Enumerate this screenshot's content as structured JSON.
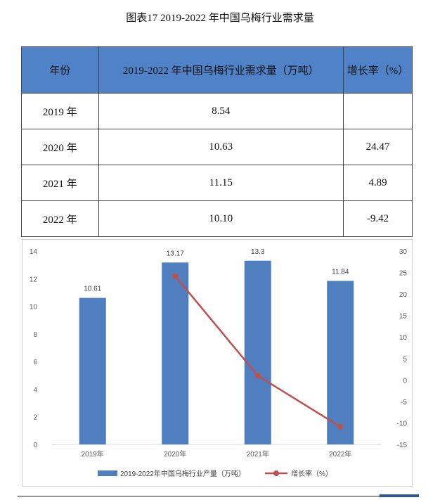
{
  "doc_title": "图表17  2019-2022 年中国乌梅行业需求量",
  "table": {
    "headers": [
      "年份",
      "2019-2022 年中国乌梅行业需求量（万吨）",
      "增长率（%）"
    ],
    "rows": [
      {
        "year": "2019 年",
        "demand": "8.54",
        "growth": ""
      },
      {
        "year": "2020 年",
        "demand": "10.63",
        "growth": "24.47"
      },
      {
        "year": "2021 年",
        "demand": "11.15",
        "growth": "4.89"
      },
      {
        "year": "2022 年",
        "demand": "10.10",
        "growth": "-9.42"
      }
    ]
  },
  "chart_data": {
    "type": "bar",
    "categories": [
      "2019年",
      "2020年",
      "2021年",
      "2022年"
    ],
    "series": [
      {
        "name": "2019-2022年中国乌梅行业产量（万吨）",
        "type": "bar",
        "axis": "left",
        "color": "#4f7fbf",
        "values": [
          10.61,
          13.17,
          13.3,
          11.84
        ],
        "labels": [
          "10.61",
          "13.17",
          "13.3",
          "11.84"
        ]
      },
      {
        "name": "增长率（%）",
        "type": "line",
        "axis": "right",
        "color": "#c0504d",
        "values": [
          null,
          24.2,
          1.0,
          -10.9
        ]
      }
    ],
    "y_left": {
      "min": 0,
      "max": 14,
      "ticks": [
        "0",
        "2",
        "4",
        "6",
        "8",
        "10",
        "12",
        "14"
      ]
    },
    "y_right": {
      "min": -15,
      "max": 30,
      "ticks": [
        "-15",
        "-10",
        "-5",
        "0",
        "5",
        "10",
        "15",
        "20",
        "25",
        "30"
      ]
    },
    "grid": false,
    "legend_position": "bottom"
  },
  "colors": {
    "header_blue": "#4f82c6",
    "bar_blue": "#4f7fbf",
    "line_red": "#c0504d",
    "accent": "#2f5597"
  }
}
